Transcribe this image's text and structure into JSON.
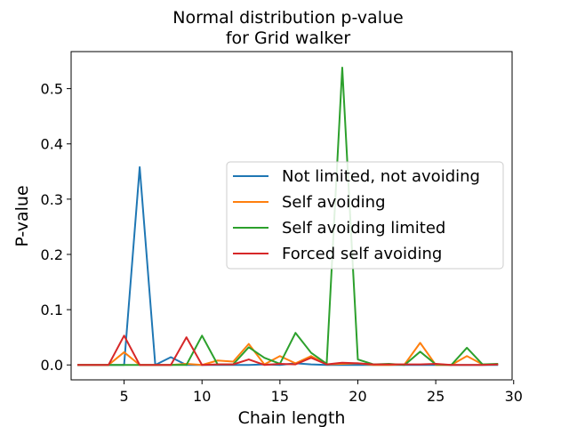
{
  "chart_data": {
    "type": "line",
    "title": "Normal distribution p-value",
    "subtitle": "for Grid walker",
    "xlabel": "Chain length",
    "ylabel": "P-value",
    "xlim": [
      1.6,
      29.9
    ],
    "ylim": [
      -0.027,
      0.567
    ],
    "xticks": [
      5,
      10,
      15,
      20,
      25,
      30
    ],
    "yticks": [
      0.0,
      0.1,
      0.2,
      0.3,
      0.4,
      0.5
    ],
    "legend_position": "center-right",
    "x": [
      2,
      3,
      4,
      5,
      6,
      7,
      8,
      9,
      10,
      11,
      12,
      13,
      14,
      15,
      16,
      17,
      18,
      19,
      20,
      21,
      22,
      23,
      24,
      25,
      26,
      27,
      28,
      29
    ],
    "series": [
      {
        "name": "Not limited, not avoiding",
        "color": "#1f77b4",
        "values": [
          0.0,
          0.0,
          0.0,
          0.0,
          0.358,
          0.0,
          0.014,
          0.0,
          0.0,
          0.0,
          0.0,
          0.0,
          0.001,
          0.0,
          0.003,
          0.001,
          0.0,
          0.0,
          0.0,
          0.0,
          0.0,
          0.0,
          0.0,
          0.0,
          0.0,
          0.0,
          0.0,
          0.0
        ]
      },
      {
        "name": "Self avoiding",
        "color": "#ff7f0e",
        "values": [
          0.0,
          0.0,
          0.0,
          0.023,
          0.0,
          0.0,
          0.0,
          0.002,
          0.0,
          0.008,
          0.006,
          0.038,
          0.001,
          0.016,
          0.003,
          0.016,
          0.001,
          0.002,
          0.003,
          0.0,
          0.0,
          0.001,
          0.04,
          0.0,
          0.0,
          0.016,
          0.001,
          0.001
        ]
      },
      {
        "name": "Self avoiding limited",
        "color": "#2ca02c",
        "values": [
          0.0,
          0.0,
          0.0,
          0.0,
          0.0,
          0.0,
          0.0,
          0.0,
          0.053,
          0.001,
          0.001,
          0.032,
          0.013,
          0.002,
          0.058,
          0.022,
          0.002,
          0.538,
          0.01,
          0.001,
          0.002,
          0.0,
          0.024,
          0.001,
          0.0,
          0.031,
          0.001,
          0.002
        ]
      },
      {
        "name": "Forced self avoiding",
        "color": "#d62728",
        "values": [
          0.0,
          0.0,
          0.0,
          0.053,
          0.0,
          0.0,
          0.0,
          0.05,
          0.0,
          0.001,
          0.001,
          0.01,
          0.0,
          0.002,
          0.001,
          0.013,
          0.001,
          0.004,
          0.003,
          0.001,
          0.001,
          0.001,
          0.001,
          0.002,
          0.0,
          0.0,
          0.0,
          0.001
        ]
      }
    ]
  }
}
